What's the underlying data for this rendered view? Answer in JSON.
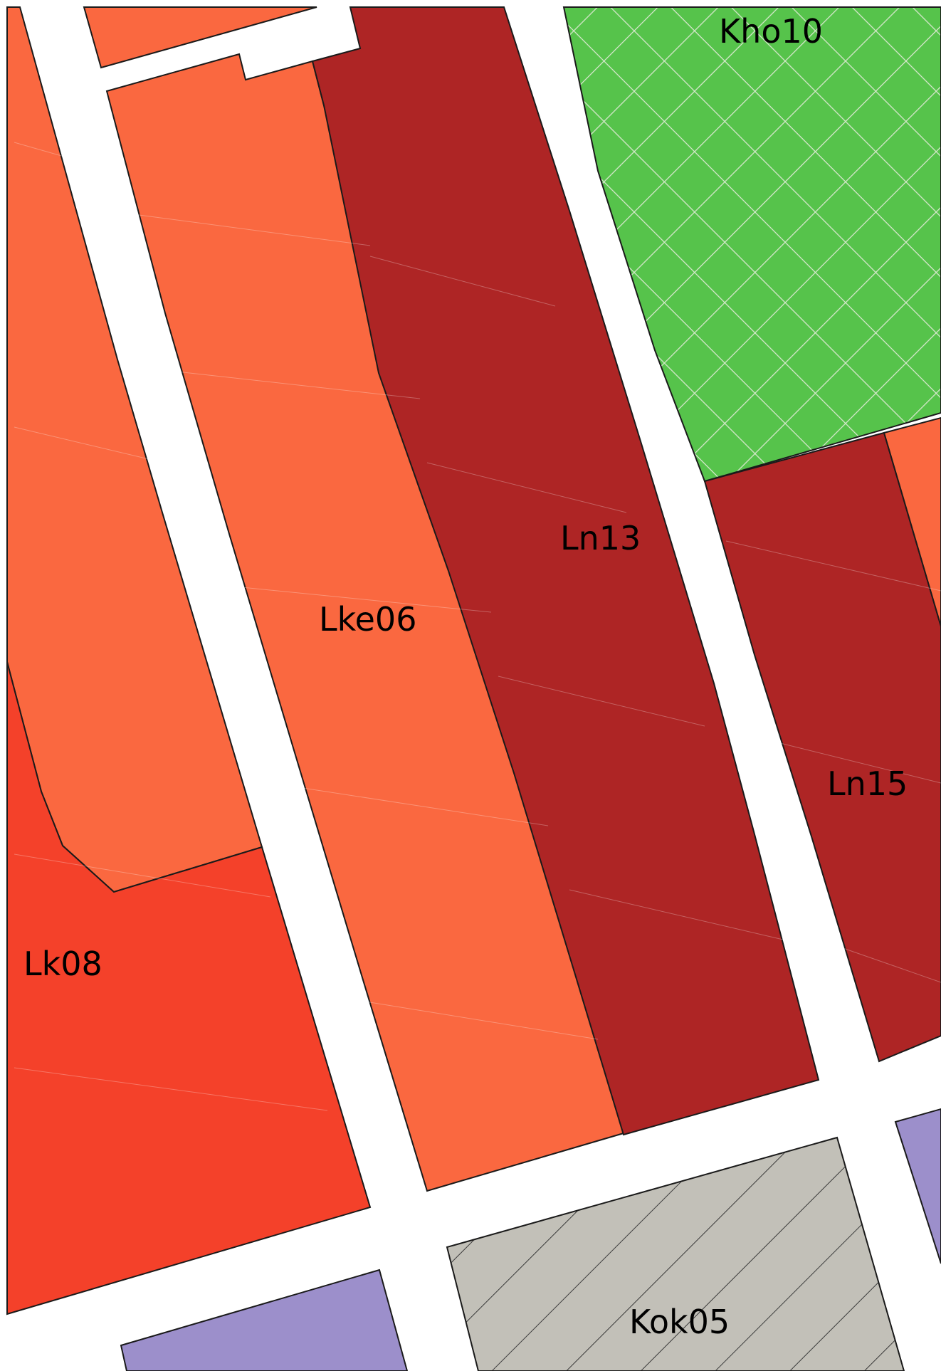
{
  "map": {
    "colors": {
      "road": "#ffffff",
      "Lke": "#fa6840",
      "Ln": "#ae2525",
      "Lk": "#f4412a",
      "Kho": "#56c34b",
      "Kok": "#c2c0b8",
      "purple_zone": "#9c8fcb",
      "outline": "#1a1a1a"
    },
    "zones": [
      {
        "id": "Kho10",
        "label": "Kho10",
        "pattern": "crosshatch"
      },
      {
        "id": "Ln13",
        "label": "Ln13",
        "pattern": "none"
      },
      {
        "id": "Lke06",
        "label": "Lke06",
        "pattern": "none"
      },
      {
        "id": "Ln15",
        "label": "Ln15",
        "pattern": "none"
      },
      {
        "id": "Lk08",
        "label": "Lk08",
        "pattern": "none"
      },
      {
        "id": "Kok05",
        "label": "Kok05",
        "pattern": "diagonal-hatch"
      }
    ]
  }
}
